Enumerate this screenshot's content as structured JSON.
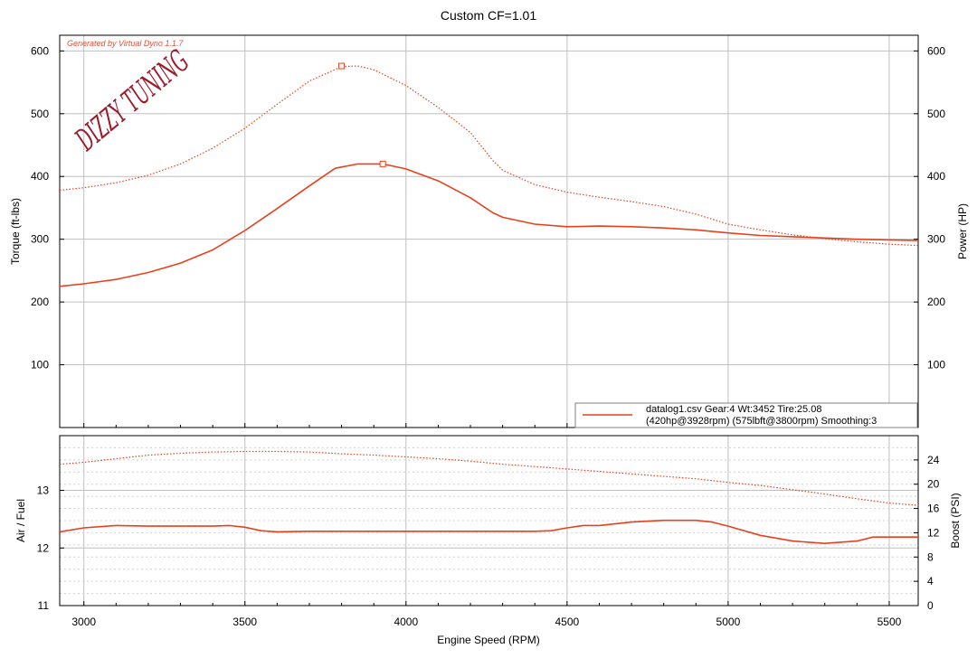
{
  "title": "Custom CF=1.01",
  "watermark": "Generated by Virtual Dyno 1.1.7",
  "logo": "DIZZY TUNING",
  "legend": {
    "line1": "datalog1.csv Gear:4 Wt:3452 Tire:25.08",
    "line2": "(420hp@3928rpm) (575lbft@3800rpm) Smoothing:3"
  },
  "colors": {
    "series": "#e8401c",
    "grid": "#bfbfbf",
    "axis": "#000000",
    "logo": "#9b1b2a"
  },
  "chart_data": [
    {
      "type": "line",
      "title": "Custom CF=1.01",
      "xlabel": "Engine Speed (RPM)",
      "ylabel": "Torque (ft-lbs)",
      "y2label": "Power (HP)",
      "xlim": [
        2925,
        5590
      ],
      "ylim": [
        0,
        625
      ],
      "y2lim": [
        0,
        625
      ],
      "xticks": [
        3000,
        3500,
        4000,
        4500,
        5000,
        5500
      ],
      "yticks": [
        100,
        200,
        300,
        400,
        500,
        600
      ],
      "y2ticks": [
        100,
        200,
        300,
        400,
        500,
        600
      ],
      "grid": true,
      "legend_position": "bottom-right",
      "series": [
        {
          "style": "solid",
          "axis": "y2",
          "x": [
            2925,
            3000,
            3100,
            3200,
            3300,
            3400,
            3500,
            3600,
            3700,
            3780,
            3850,
            3928,
            4000,
            4100,
            4200,
            4270,
            4300,
            4400,
            4500,
            4600,
            4700,
            4800,
            4900,
            5000,
            5100,
            5200,
            5300,
            5400,
            5500,
            5590
          ],
          "y": [
            225,
            229,
            236,
            247,
            262,
            283,
            314,
            349,
            385,
            413,
            420,
            420,
            412,
            393,
            366,
            342,
            335,
            324,
            320,
            321,
            320,
            318,
            315,
            310,
            306,
            304,
            302,
            300,
            299,
            298
          ]
        },
        {
          "style": "dotted",
          "axis": "y",
          "x": [
            2925,
            3000,
            3100,
            3200,
            3300,
            3400,
            3500,
            3600,
            3700,
            3800,
            3850,
            3900,
            4000,
            4100,
            4200,
            4270,
            4300,
            4400,
            4500,
            4600,
            4700,
            4800,
            4900,
            5000,
            5100,
            5200,
            5300,
            5400,
            5500,
            5590
          ],
          "y": [
            378,
            382,
            390,
            402,
            420,
            445,
            477,
            515,
            552,
            575,
            576,
            570,
            545,
            510,
            470,
            425,
            410,
            387,
            375,
            367,
            360,
            352,
            340,
            324,
            315,
            307,
            301,
            296,
            292,
            290
          ]
        }
      ]
    },
    {
      "type": "line",
      "xlabel": "Engine Speed (RPM)",
      "ylabel": "Air / Fuel",
      "y2label": "Boost (PSI)",
      "xlim": [
        2925,
        5590
      ],
      "ylim": [
        11,
        13.95
      ],
      "y2lim": [
        0,
        28
      ],
      "xticks": [
        3000,
        3500,
        4000,
        4500,
        5000,
        5500
      ],
      "yticks": [
        11,
        12,
        13
      ],
      "y2ticks": [
        0,
        4,
        8,
        12,
        16,
        20,
        24
      ],
      "grid": true,
      "series": [
        {
          "style": "solid",
          "axis": "y",
          "x": [
            2925,
            3000,
            3100,
            3200,
            3300,
            3400,
            3450,
            3500,
            3550,
            3600,
            3700,
            3800,
            3900,
            4000,
            4100,
            4200,
            4300,
            4400,
            4450,
            4500,
            4550,
            4600,
            4700,
            4800,
            4900,
            4950,
            5000,
            5100,
            5200,
            5300,
            5400,
            5450,
            5500,
            5590
          ],
          "y": [
            12.28,
            12.35,
            12.39,
            12.38,
            12.38,
            12.38,
            12.39,
            12.36,
            12.3,
            12.28,
            12.29,
            12.29,
            12.29,
            12.29,
            12.29,
            12.29,
            12.29,
            12.29,
            12.3,
            12.35,
            12.39,
            12.39,
            12.45,
            12.48,
            12.48,
            12.45,
            12.38,
            12.22,
            12.12,
            12.08,
            12.12,
            12.19,
            12.19,
            12.19
          ]
        },
        {
          "style": "dotted",
          "axis": "y2",
          "x": [
            2925,
            3000,
            3100,
            3200,
            3300,
            3400,
            3500,
            3600,
            3700,
            3800,
            3900,
            4000,
            4100,
            4200,
            4300,
            4400,
            4500,
            4600,
            4700,
            4800,
            4900,
            5000,
            5100,
            5200,
            5300,
            5400,
            5500,
            5590
          ],
          "y": [
            23.3,
            23.6,
            24.2,
            24.8,
            25.1,
            25.3,
            25.4,
            25.4,
            25.3,
            25.0,
            24.8,
            24.5,
            24.2,
            23.8,
            23.3,
            22.9,
            22.5,
            22.1,
            21.7,
            21.3,
            20.9,
            20.3,
            19.8,
            19.1,
            18.4,
            17.6,
            16.9,
            16.5
          ]
        }
      ]
    }
  ]
}
